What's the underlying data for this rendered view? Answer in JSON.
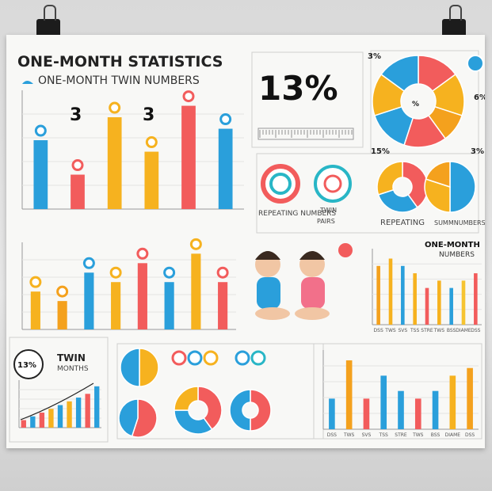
{
  "header": {
    "title": "ONE-MONTH STATISTICS",
    "subtitle": "ONE-MONTH TWIN NUMBERS"
  },
  "panel_percent": {
    "value": "13%"
  },
  "donut_labels": {
    "top_left": "3%",
    "top_right": "3%",
    "center": "%",
    "bottom_left": "15%",
    "right": "6%",
    "bottom_right": "3%"
  },
  "mini_labels": {
    "repeating_numbers": "REPEATING NUMBERS",
    "twin_pairs_line1": "TWIN",
    "twin_pairs_line2": "PAIRS",
    "repeating": "REPEATING",
    "summnumbers": "SUMMNUMBERS"
  },
  "right_mid": {
    "title_line1": "ONE-MONTH",
    "title_line2": "NUMBERS"
  },
  "bottom_left": {
    "badge": "13%",
    "title_line1": "TWIN",
    "title_line2": "MONTHS"
  },
  "right_mid_ticks": [
    "DSS",
    "TWS",
    "SVS",
    "TSS",
    "STRE",
    "TWS",
    "BSS",
    "DIAME",
    "DSS"
  ],
  "colors": {
    "blue": "#2a9fdb",
    "red": "#f25c5c",
    "orange": "#f4a11d",
    "yellow": "#f6c431",
    "teal": "#29b6c6"
  },
  "chart_data": [
    {
      "type": "bar",
      "series": [
        {
          "values": [
            6,
            3,
            8,
            5,
            9,
            7
          ]
        }
      ],
      "annotations": [
        "3",
        "3"
      ],
      "colors": [
        "#2a9fdb",
        "#f25c5c",
        "#f6b21f",
        "#f6b21f",
        "#f25c5c",
        "#2a9fdb"
      ]
    },
    {
      "type": "bar",
      "series": [
        {
          "values": [
            4,
            3,
            6,
            5,
            7,
            5,
            8,
            5
          ]
        }
      ],
      "colors": [
        "#f6b21f",
        "#f4a11d",
        "#2a9fdb",
        "#f6b21f",
        "#f25c5c",
        "#2a9fdb",
        "#f6b21f",
        "#f25c5c"
      ]
    },
    {
      "type": "pie",
      "values": [
        15,
        15,
        10,
        15,
        15,
        15,
        15
      ],
      "colors": [
        "#f25c5c",
        "#f6b21f",
        "#f4a11d",
        "#f25c5c",
        "#2a9fdb",
        "#f6b21f",
        "#2a9fdb"
      ]
    },
    {
      "type": "bar",
      "categories": [
        "DSS",
        "TWS",
        "SVS",
        "TSS",
        "STRE",
        "TWS",
        "BSS",
        "DIAME",
        "DSS"
      ],
      "series": [
        {
          "values": [
            8,
            9,
            8,
            7,
            5,
            6,
            5,
            6,
            7
          ]
        }
      ],
      "colors": [
        "#f4a11d",
        "#f6b21f",
        "#2a9fdb",
        "#f6b21f",
        "#f25c5c",
        "#f6b21f",
        "#2a9fdb",
        "#f6c431",
        "#f25c5c"
      ]
    },
    {
      "type": "bar",
      "series": [
        {
          "values": [
            1,
            1.5,
            2,
            2.5,
            3,
            3.5,
            4,
            4.5,
            5.5
          ]
        }
      ],
      "colors": [
        "#f25c5c",
        "#2a9fdb",
        "#f25c5c",
        "#f6b21f",
        "#2a9fdb",
        "#f6b21f",
        "#2a9fdb",
        "#f25c5c",
        "#2a9fdb"
      ]
    },
    {
      "type": "bar",
      "categories": [
        "DSS",
        "TWS",
        "SVS",
        "TSS",
        "STRE",
        "TWS",
        "BSS",
        "DIAME",
        "DSS"
      ],
      "series": [
        {
          "values": [
            4,
            9,
            4,
            7,
            5,
            4,
            5,
            7,
            8
          ]
        }
      ],
      "colors": [
        "#2a9fdb",
        "#f4a11d",
        "#f25c5c",
        "#2a9fdb",
        "#2a9fdb",
        "#f25c5c",
        "#2a9fdb",
        "#f6b21f",
        "#f4a11d"
      ]
    }
  ]
}
